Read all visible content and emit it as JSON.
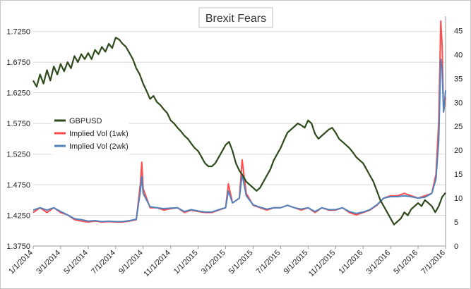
{
  "chart_data": {
    "type": "line",
    "title": "Brexit Fears",
    "x_tick_labels": [
      "1/1/2014",
      "3/1/2014",
      "5/1/2014",
      "7/1/2014",
      "9/1/2014",
      "11/1/2014",
      "1/1/2015",
      "3/1/2015",
      "5/1/2015",
      "7/1/2015",
      "9/1/2015",
      "11/1/2015",
      "1/1/2016",
      "3/1/2016",
      "5/1/2016",
      "7/1/2016"
    ],
    "x_range": [
      0,
      30
    ],
    "y_left": {
      "ticks": [
        "1.3750",
        "1.4250",
        "1.4750",
        "1.5250",
        "1.5750",
        "1.6250",
        "1.6750",
        "1.7250"
      ],
      "range": [
        1.375,
        1.75
      ]
    },
    "y_right": {
      "ticks": [
        "0",
        "5",
        "10",
        "15",
        "20",
        "25",
        "30",
        "35",
        "40",
        "45"
      ],
      "range": [
        0,
        48
      ]
    },
    "grid": true,
    "legend_placement": "middle-left",
    "x_unit_note_removed": true,
    "series": [
      {
        "name": "GBPUSD",
        "axis": "left",
        "color": "#2e4a1b",
        "points": [
          [
            0,
            1.645
          ],
          [
            0.25,
            1.635
          ],
          [
            0.5,
            1.655
          ],
          [
            0.75,
            1.64
          ],
          [
            1,
            1.662
          ],
          [
            1.25,
            1.645
          ],
          [
            1.5,
            1.668
          ],
          [
            1.75,
            1.655
          ],
          [
            2,
            1.672
          ],
          [
            2.25,
            1.66
          ],
          [
            2.5,
            1.675
          ],
          [
            2.75,
            1.665
          ],
          [
            3,
            1.685
          ],
          [
            3.25,
            1.675
          ],
          [
            3.5,
            1.688
          ],
          [
            3.75,
            1.68
          ],
          [
            4,
            1.69
          ],
          [
            4.25,
            1.68
          ],
          [
            4.5,
            1.695
          ],
          [
            4.75,
            1.688
          ],
          [
            5,
            1.7
          ],
          [
            5.25,
            1.692
          ],
          [
            5.5,
            1.705
          ],
          [
            5.75,
            1.698
          ],
          [
            6,
            1.715
          ],
          [
            6.25,
            1.712
          ],
          [
            6.5,
            1.705
          ],
          [
            6.75,
            1.7
          ],
          [
            7,
            1.69
          ],
          [
            7.25,
            1.68
          ],
          [
            7.5,
            1.665
          ],
          [
            7.75,
            1.655
          ],
          [
            8,
            1.64
          ],
          [
            8.25,
            1.628
          ],
          [
            8.5,
            1.615
          ],
          [
            8.75,
            1.62
          ],
          [
            9,
            1.61
          ],
          [
            9.25,
            1.605
          ],
          [
            9.5,
            1.598
          ],
          [
            9.75,
            1.592
          ],
          [
            10,
            1.58
          ],
          [
            10.25,
            1.575
          ],
          [
            10.5,
            1.568
          ],
          [
            10.75,
            1.562
          ],
          [
            11,
            1.555
          ],
          [
            11.25,
            1.55
          ],
          [
            11.5,
            1.542
          ],
          [
            11.75,
            1.535
          ],
          [
            12,
            1.53
          ],
          [
            12.25,
            1.52
          ],
          [
            12.5,
            1.51
          ],
          [
            12.75,
            1.505
          ],
          [
            13,
            1.505
          ],
          [
            13.25,
            1.51
          ],
          [
            13.5,
            1.52
          ],
          [
            13.75,
            1.53
          ],
          [
            14,
            1.54
          ],
          [
            14.25,
            1.545
          ],
          [
            14.5,
            1.53
          ],
          [
            14.75,
            1.51
          ],
          [
            15,
            1.498
          ],
          [
            15.25,
            1.49
          ],
          [
            15.5,
            1.48
          ],
          [
            15.75,
            1.475
          ],
          [
            16,
            1.47
          ],
          [
            16.25,
            1.465
          ],
          [
            16.5,
            1.47
          ],
          [
            16.75,
            1.48
          ],
          [
            17,
            1.49
          ],
          [
            17.25,
            1.5
          ],
          [
            17.5,
            1.515
          ],
          [
            17.75,
            1.525
          ],
          [
            18,
            1.535
          ],
          [
            18.25,
            1.548
          ],
          [
            18.5,
            1.56
          ],
          [
            18.75,
            1.565
          ],
          [
            19,
            1.57
          ],
          [
            19.25,
            1.575
          ],
          [
            19.5,
            1.572
          ],
          [
            19.75,
            1.568
          ],
          [
            20,
            1.58
          ],
          [
            20.25,
            1.575
          ],
          [
            20.5,
            1.558
          ],
          [
            20.75,
            1.55
          ],
          [
            21,
            1.555
          ],
          [
            21.25,
            1.56
          ],
          [
            21.5,
            1.565
          ],
          [
            21.75,
            1.568
          ],
          [
            22,
            1.56
          ],
          [
            22.25,
            1.55
          ],
          [
            22.5,
            1.545
          ],
          [
            22.75,
            1.54
          ],
          [
            23,
            1.535
          ],
          [
            23.25,
            1.528
          ],
          [
            23.5,
            1.52
          ],
          [
            23.75,
            1.515
          ],
          [
            24,
            1.51
          ],
          [
            24.25,
            1.5
          ],
          [
            24.5,
            1.49
          ],
          [
            24.75,
            1.48
          ],
          [
            25,
            1.465
          ],
          [
            25.25,
            1.45
          ],
          [
            25.5,
            1.44
          ],
          [
            25.75,
            1.43
          ],
          [
            26,
            1.42
          ],
          [
            26.25,
            1.41
          ],
          [
            26.5,
            1.415
          ],
          [
            26.75,
            1.42
          ],
          [
            27,
            1.43
          ],
          [
            27.25,
            1.425
          ],
          [
            27.5,
            1.435
          ],
          [
            27.75,
            1.44
          ],
          [
            28,
            1.445
          ],
          [
            28.25,
            1.44
          ],
          [
            28.5,
            1.45
          ],
          [
            28.75,
            1.445
          ],
          [
            29,
            1.44
          ],
          [
            29.25,
            1.43
          ],
          [
            29.5,
            1.44
          ],
          [
            29.75,
            1.455
          ],
          [
            30,
            1.462
          ]
        ]
      },
      {
        "name": "Implied Vol (1wk)",
        "axis": "right",
        "color": "#ff4d4d",
        "points": [
          [
            0,
            7
          ],
          [
            0.5,
            8
          ],
          [
            1,
            7
          ],
          [
            1.5,
            8
          ],
          [
            2,
            7
          ],
          [
            2.5,
            6.5
          ],
          [
            3,
            5.5
          ],
          [
            3.5,
            5.2
          ],
          [
            4,
            5
          ],
          [
            4.5,
            5.2
          ],
          [
            5,
            5
          ],
          [
            5.5,
            5.1
          ],
          [
            6,
            5
          ],
          [
            6.5,
            5
          ],
          [
            7,
            5.2
          ],
          [
            7.5,
            5.5
          ],
          [
            7.8,
            13
          ],
          [
            7.9,
            17.5
          ],
          [
            8,
            12
          ],
          [
            8.5,
            8
          ],
          [
            9,
            8
          ],
          [
            9.5,
            7.5
          ],
          [
            10,
            7.8
          ],
          [
            10.5,
            8
          ],
          [
            11,
            7
          ],
          [
            11.5,
            7.5
          ],
          [
            12,
            7.2
          ],
          [
            12.5,
            7
          ],
          [
            13,
            7
          ],
          [
            13.5,
            7.5
          ],
          [
            14,
            8
          ],
          [
            14.2,
            13
          ],
          [
            14.5,
            9
          ],
          [
            15,
            10
          ],
          [
            15.2,
            18
          ],
          [
            15.5,
            11
          ],
          [
            16,
            8.5
          ],
          [
            16.5,
            8
          ],
          [
            17,
            7.5
          ],
          [
            17.5,
            8
          ],
          [
            18,
            8
          ],
          [
            18.5,
            8.5
          ],
          [
            19,
            8
          ],
          [
            19.5,
            7.5
          ],
          [
            20,
            8
          ],
          [
            20.5,
            7
          ],
          [
            21,
            8
          ],
          [
            21.5,
            7.5
          ],
          [
            22,
            7.5
          ],
          [
            22.5,
            8
          ],
          [
            23,
            7
          ],
          [
            23.5,
            6.5
          ],
          [
            24,
            7
          ],
          [
            24.5,
            7.5
          ],
          [
            25,
            8.5
          ],
          [
            25.5,
            10
          ],
          [
            26,
            10.5
          ],
          [
            26.5,
            10.5
          ],
          [
            27,
            11
          ],
          [
            27.5,
            10.5
          ],
          [
            28,
            10
          ],
          [
            28.5,
            10.5
          ],
          [
            29,
            11
          ],
          [
            29.3,
            15
          ],
          [
            29.5,
            26
          ],
          [
            29.65,
            47
          ],
          [
            29.75,
            42
          ],
          [
            29.85,
            28
          ],
          [
            30,
            31
          ]
        ]
      },
      {
        "name": "Implied Vol (2wk)",
        "axis": "right",
        "color": "#4f81bd",
        "points": [
          [
            0,
            7.5
          ],
          [
            0.5,
            8
          ],
          [
            1,
            7.5
          ],
          [
            1.5,
            8
          ],
          [
            2,
            7.2
          ],
          [
            2.5,
            6.5
          ],
          [
            3,
            5.7
          ],
          [
            3.5,
            5.5
          ],
          [
            4,
            5.2
          ],
          [
            4.5,
            5.3
          ],
          [
            5,
            5.1
          ],
          [
            5.5,
            5.2
          ],
          [
            6,
            5.1
          ],
          [
            6.5,
            5.1
          ],
          [
            7,
            5.3
          ],
          [
            7.5,
            5.6
          ],
          [
            7.8,
            11.5
          ],
          [
            7.9,
            14.5
          ],
          [
            8,
            11
          ],
          [
            8.5,
            8.2
          ],
          [
            9,
            8
          ],
          [
            9.5,
            7.8
          ],
          [
            10,
            7.9
          ],
          [
            10.5,
            8
          ],
          [
            11,
            7.2
          ],
          [
            11.5,
            7.6
          ],
          [
            12,
            7.3
          ],
          [
            12.5,
            7.1
          ],
          [
            13,
            7.1
          ],
          [
            13.5,
            7.6
          ],
          [
            14,
            8
          ],
          [
            14.2,
            11.5
          ],
          [
            14.5,
            9
          ],
          [
            15,
            10
          ],
          [
            15.2,
            15
          ],
          [
            15.5,
            10.5
          ],
          [
            16,
            8.6
          ],
          [
            16.5,
            8.1
          ],
          [
            17,
            7.7
          ],
          [
            17.5,
            8
          ],
          [
            18,
            8
          ],
          [
            18.5,
            8.5
          ],
          [
            19,
            8
          ],
          [
            19.5,
            7.7
          ],
          [
            20,
            8
          ],
          [
            20.5,
            7.2
          ],
          [
            21,
            8
          ],
          [
            21.5,
            7.6
          ],
          [
            22,
            7.6
          ],
          [
            22.5,
            8
          ],
          [
            23,
            7.2
          ],
          [
            23.5,
            6.8
          ],
          [
            24,
            7.1
          ],
          [
            24.5,
            7.6
          ],
          [
            25,
            8.6
          ],
          [
            25.5,
            10
          ],
          [
            26,
            10.3
          ],
          [
            26.5,
            10.3
          ],
          [
            27,
            10.5
          ],
          [
            27.5,
            10.3
          ],
          [
            28,
            10
          ],
          [
            28.5,
            10.2
          ],
          [
            29,
            11
          ],
          [
            29.3,
            14
          ],
          [
            29.5,
            22
          ],
          [
            29.65,
            39
          ],
          [
            29.75,
            37
          ],
          [
            29.85,
            28
          ],
          [
            30,
            32.5
          ]
        ]
      }
    ]
  }
}
